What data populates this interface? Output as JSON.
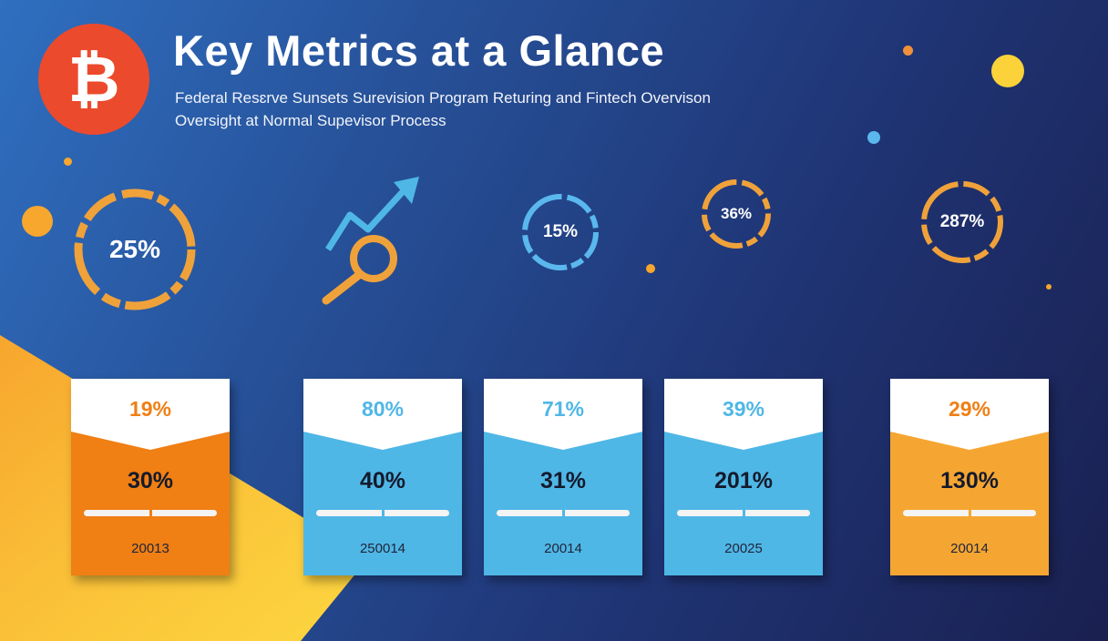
{
  "header": {
    "title": "Key Metrics at a Glance",
    "subtitle_line1": "Federal Resɛrve Sunsets Surevision Program Returing and Fintech Overvison",
    "subtitle_line2": "Oversight at Normal Supevisor Process",
    "logo_symbol": "₿",
    "logo_color": "#ec4a2c"
  },
  "rings": [
    {
      "label": "25%",
      "color": "#f0a23a"
    },
    {
      "label": "15%",
      "color": "#5ab8ee"
    },
    {
      "label": "36%",
      "color": "#f0a23a"
    },
    {
      "label": "287%",
      "color": "#f0a23a"
    }
  ],
  "growth_icon": {
    "name": "magnifier-growth-arrow-icon",
    "arrow_color": "#4fb7e6",
    "lens_color": "#f0a23a"
  },
  "cards": [
    {
      "top_value": "19%",
      "main_value": "30%",
      "year": "20013",
      "color": "orange",
      "top_color": "#f07f14"
    },
    {
      "top_value": "80%",
      "main_value": "40%",
      "year": "250014",
      "color": "blue",
      "top_color": "#4fb7e6"
    },
    {
      "top_value": "71%",
      "main_value": "31%",
      "year": "20014",
      "color": "blue",
      "top_color": "#4fb7e6"
    },
    {
      "top_value": "39%",
      "main_value": "201%",
      "year": "20025",
      "color": "blue",
      "top_color": "#4fb7e6"
    },
    {
      "top_value": "29%",
      "main_value": "130%",
      "year": "20014",
      "color": "amber",
      "top_color": "#f07f14"
    }
  ],
  "colors": {
    "accent_orange": "#f07f14",
    "accent_blue": "#4fb7e6",
    "accent_yellow": "#fbd23a"
  }
}
